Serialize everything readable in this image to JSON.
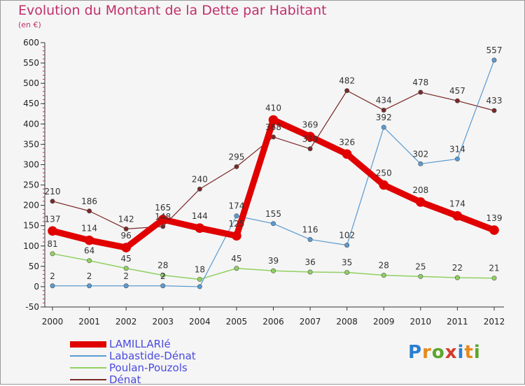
{
  "title": "Evolution du Montant de la Dette par Habitant",
  "subtitle": "(en €)",
  "logo": {
    "text": "Proxiti",
    "colors": [
      "#2a7fd0",
      "#e88a1a",
      "#5aa62a",
      "#d63a2a",
      "#2a7fd0",
      "#e88a1a",
      "#5aa62a"
    ]
  },
  "chart_data": {
    "type": "line",
    "title": "Evolution du Montant de la Dette par Habitant",
    "subtitle": "(en €)",
    "x": [
      "2000",
      "2001",
      "2002",
      "2003",
      "2004",
      "2005",
      "2006",
      "2007",
      "2008",
      "2009",
      "2010",
      "2011",
      "2012"
    ],
    "ylim": [
      -50,
      600
    ],
    "yticks": [
      -50,
      0,
      50,
      100,
      150,
      200,
      250,
      300,
      350,
      400,
      450,
      500,
      550,
      600
    ],
    "grid": false,
    "legend_position": "bottom-left",
    "series": [
      {
        "name": "LAMILLARIé",
        "color": "#e00000",
        "values": [
          137,
          114,
          96,
          165,
          144,
          125,
          410,
          369,
          326,
          250,
          208,
          174,
          139
        ]
      },
      {
        "name": "Labastide-Dénat",
        "color": "#5a9ad0",
        "values": [
          2,
          2,
          2,
          2,
          0,
          174,
          155,
          116,
          102,
          392,
          302,
          314,
          557
        ]
      },
      {
        "name": "Poulan-Pouzols",
        "color": "#90d060",
        "values": [
          81,
          64,
          45,
          28,
          18,
          45,
          39,
          36,
          35,
          28,
          25,
          22,
          21
        ]
      },
      {
        "name": "Dénat",
        "color": "#7a2828",
        "values": [
          210,
          186,
          142,
          148,
          240,
          295,
          368,
          339,
          482,
          434,
          478,
          457,
          433
        ]
      }
    ],
    "data_labels": {
      "LAMILLARIé": [
        "137",
        "114",
        "96",
        "165",
        "144",
        "125",
        "410",
        "369",
        "326",
        "250",
        "208",
        "174",
        "139"
      ],
      "Labastide-Dénat": [
        "2",
        "2",
        "2",
        "2",
        "",
        "174",
        "155",
        "116",
        "102",
        "392",
        "302",
        "314",
        "557"
      ],
      "Poulan-Pouzols": [
        "81",
        "64",
        "45",
        "28",
        "18",
        "45",
        "39",
        "36",
        "35",
        "28",
        "25",
        "22",
        "21"
      ],
      "Dénat": [
        "210",
        "186",
        "142",
        "148",
        "240",
        "295",
        "368",
        "339",
        "482",
        "434",
        "478",
        "457",
        "433"
      ]
    }
  }
}
